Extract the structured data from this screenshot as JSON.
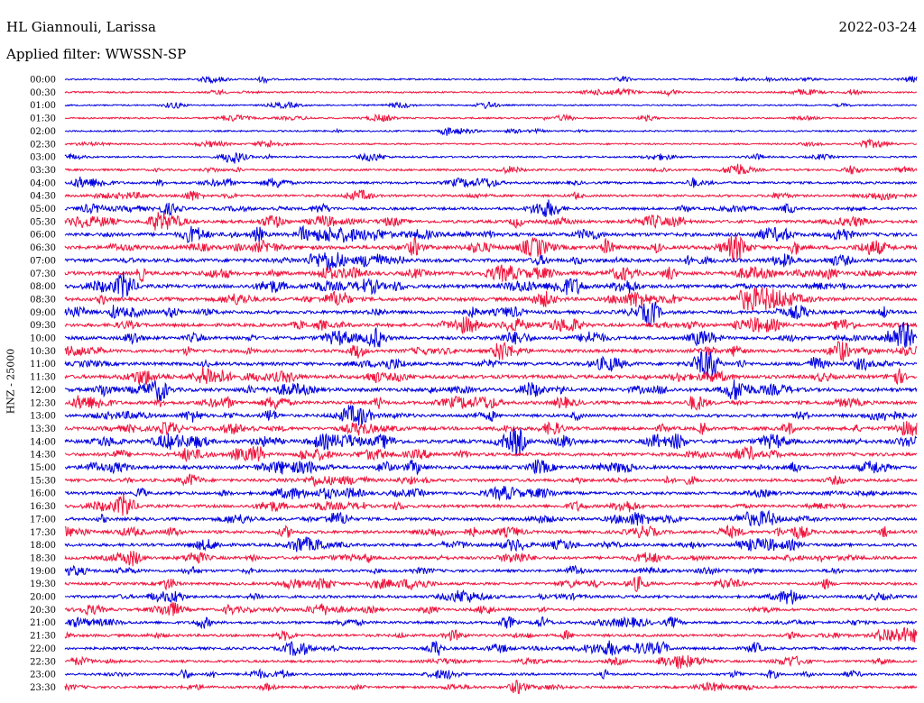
{
  "header": {
    "station": "HL Giannouli, Larissa",
    "filter": "Applied filter: WWSSN-SP",
    "date": "2022-03-24"
  },
  "chart_data": {
    "type": "line",
    "title": "HL Giannouli, Larissa",
    "subtitle": "Applied filter: WWSSN-SP",
    "date": "2022-03-24",
    "ylabel": "HNZ - 25000",
    "xlabel": "",
    "grid": false,
    "legend": "none",
    "trace_interval_minutes": 30,
    "colors": [
      "#0000e0",
      "#f0143c"
    ],
    "y_tick_labels": [
      "00:00",
      "00:30",
      "01:00",
      "01:30",
      "02:00",
      "02:30",
      "03:00",
      "03:30",
      "04:00",
      "04:30",
      "05:00",
      "05:30",
      "06:00",
      "06:30",
      "07:00",
      "07:30",
      "08:00",
      "08:30",
      "09:00",
      "09:30",
      "10:00",
      "10:30",
      "11:00",
      "11:30",
      "12:00",
      "12:30",
      "13:00",
      "13:30",
      "14:00",
      "14:30",
      "15:00",
      "15:30",
      "16:00",
      "16:30",
      "17:00",
      "17:30",
      "18:00",
      "18:30",
      "19:00",
      "19:30",
      "20:00",
      "20:30",
      "21:00",
      "21:30",
      "22:00",
      "22:30",
      "23:00",
      "23:30"
    ],
    "relative_activity": [
      0.15,
      0.15,
      0.1,
      0.15,
      0.15,
      0.15,
      0.2,
      0.3,
      0.4,
      0.4,
      0.5,
      0.6,
      0.8,
      0.85,
      0.8,
      0.8,
      0.8,
      0.8,
      0.7,
      0.7,
      0.7,
      0.7,
      0.7,
      0.8,
      0.8,
      0.7,
      0.6,
      0.7,
      0.8,
      0.7,
      0.7,
      0.6,
      0.6,
      0.6,
      0.6,
      0.6,
      0.6,
      0.6,
      0.5,
      0.5,
      0.5,
      0.5,
      0.5,
      0.5,
      0.5,
      0.4,
      0.4,
      0.4
    ]
  }
}
